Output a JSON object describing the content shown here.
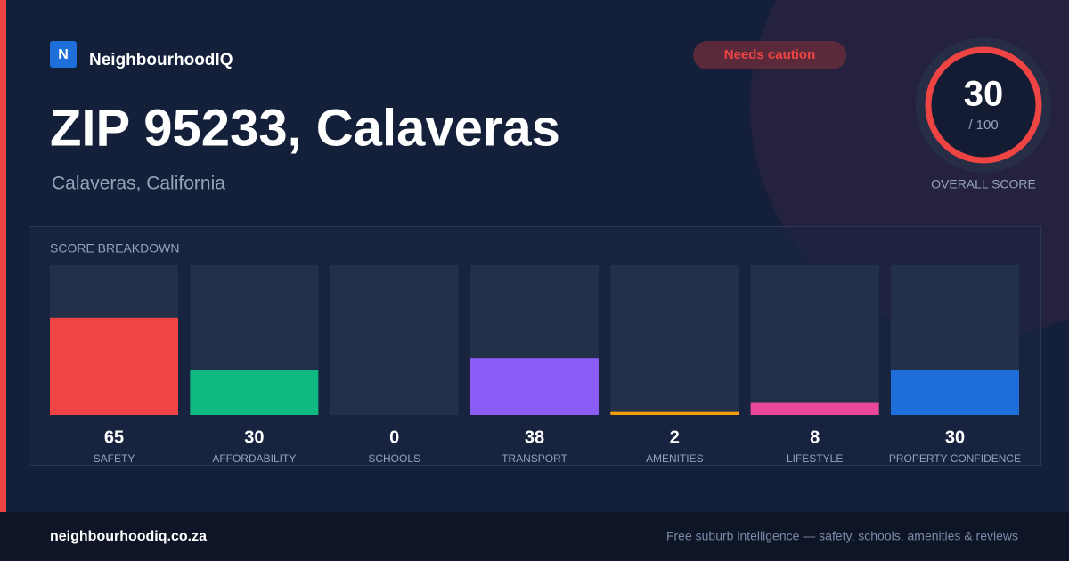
{
  "header": {
    "logo": "N",
    "brand": "NeighbourhoodIQ"
  },
  "badge": "Needs caution",
  "title": "ZIP 95233, Calaveras",
  "subtitle": "Calaveras, California",
  "score": {
    "value": 30,
    "max_label": "/ 100",
    "caption": "OVERALL SCORE"
  },
  "chart_data": {
    "type": "bar",
    "title": "SCORE BREAKDOWN",
    "categories": [
      "SAFETY",
      "AFFORDABILITY",
      "SCHOOLS",
      "TRANSPORT",
      "AMENITIES",
      "LIFESTYLE",
      "PROPERTY CONFIDENCE"
    ],
    "values": [
      65,
      30,
      0,
      38,
      2,
      8,
      30
    ],
    "colors": [
      "#ef4444",
      "#10b981",
      "#3b82f6",
      "#8b5cf6",
      "#f59e0b",
      "#ec4899",
      "#1e6fd9"
    ],
    "ylim": [
      0,
      100
    ]
  },
  "footer": {
    "site": "neighbourhoodiq.co.za",
    "tagline": "Free suburb intelligence — safety, schools, amenities & reviews"
  }
}
